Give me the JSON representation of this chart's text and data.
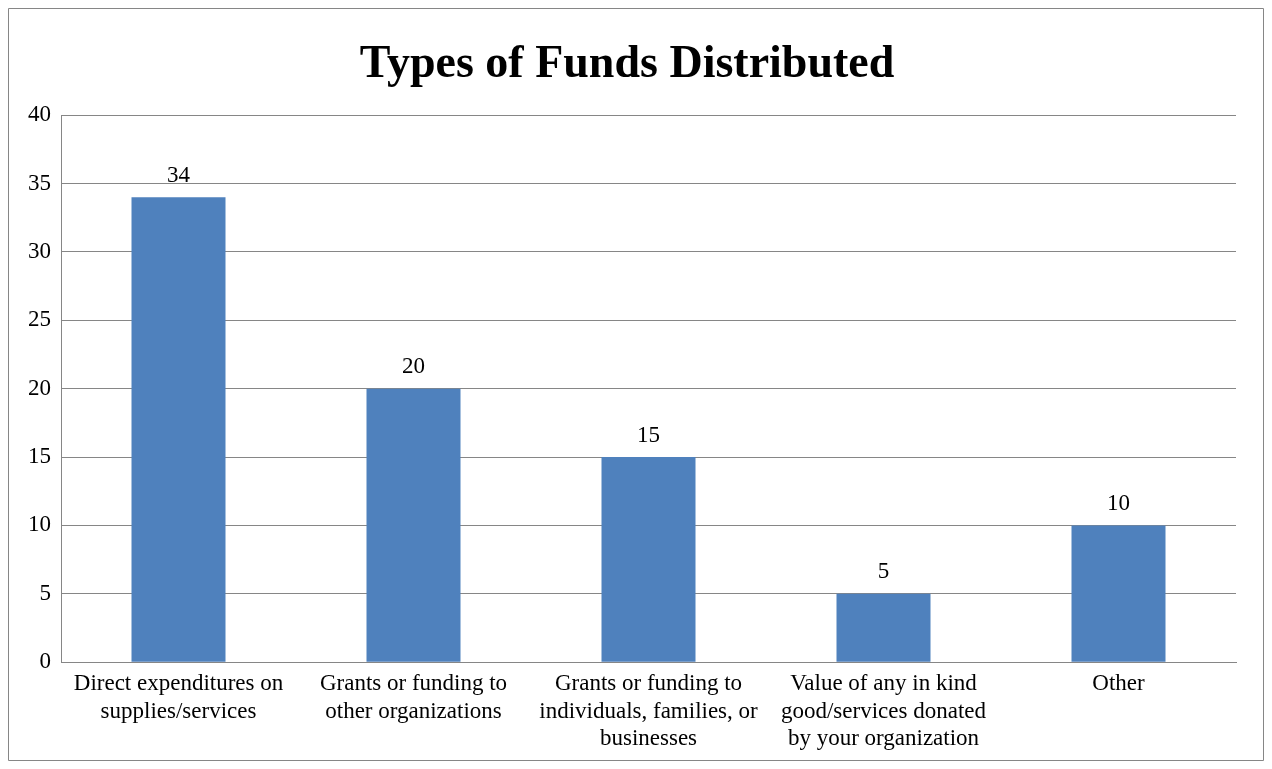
{
  "chart_data": {
    "type": "bar",
    "title": "Types of Funds Distributed",
    "categories": [
      "Direct expenditures on supplies/services",
      "Grants or funding to other organizations",
      "Grants or funding to individuals, families, or businesses",
      "Value of any in kind good/services donated by your organization",
      "Other"
    ],
    "values": [
      34,
      20,
      15,
      5,
      10
    ],
    "color": "#4f81bd",
    "ylim": [
      0,
      40
    ],
    "yticks": [
      0,
      5,
      10,
      15,
      20,
      25,
      30,
      35,
      40
    ],
    "grid": "y",
    "data_labels": true
  }
}
